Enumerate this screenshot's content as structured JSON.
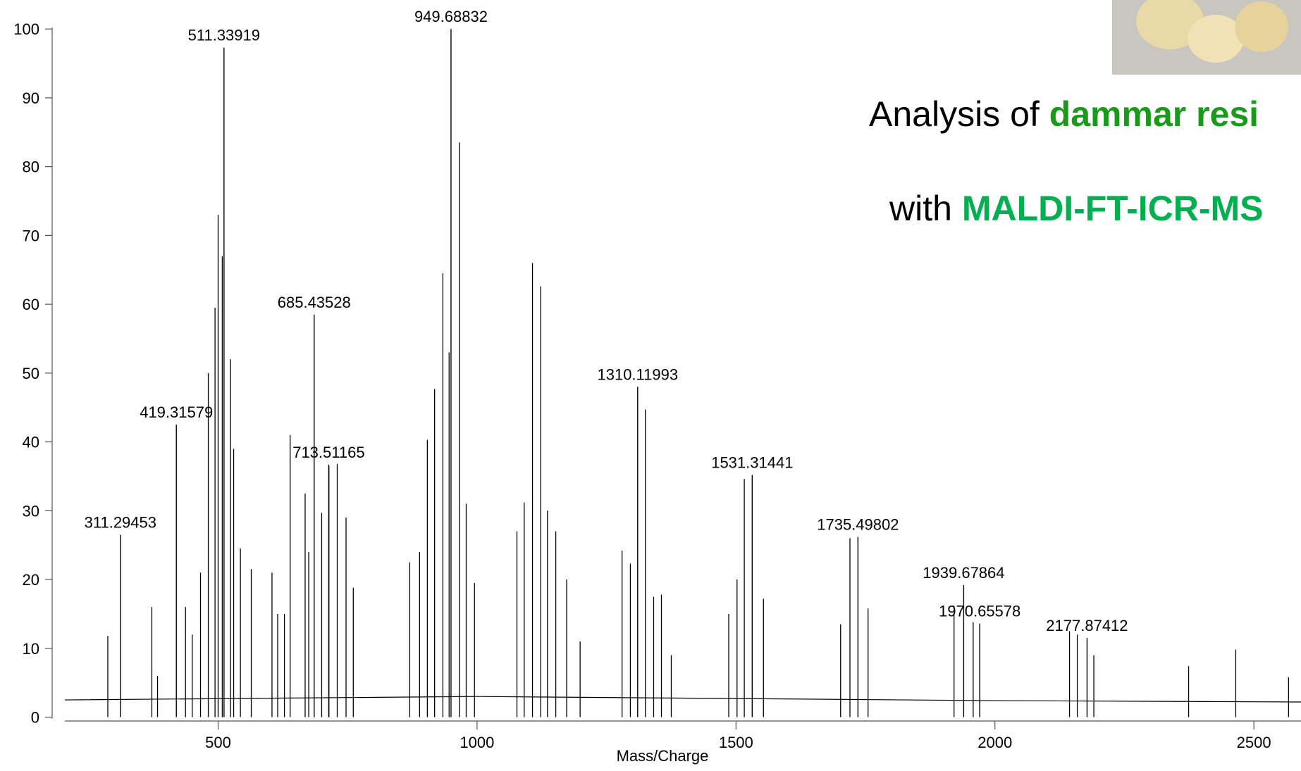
{
  "chart_data": {
    "type": "spectrum",
    "x_label": "Mass/Charge",
    "xlim": [
      204,
      2591
    ],
    "xticks": [
      500,
      1000,
      1500,
      2000,
      2500
    ],
    "ylim": [
      0,
      100
    ],
    "yticks": [
      0,
      10,
      20,
      30,
      40,
      50,
      60,
      70,
      80,
      90,
      100
    ],
    "color": "#000000",
    "x": [
      311.29453,
      419.31579,
      511.33919,
      685.43528,
      713.51165,
      949.68832,
      1310.11993,
      1531.31441,
      1735.49802,
      1939.67864,
      1970.65578,
      2177.87412
    ],
    "values": [
      26.5,
      42.5,
      97.3,
      58.5,
      36.7,
      100,
      48,
      35.2,
      26.2,
      19.2,
      13.6,
      11.5
    ],
    "unlabeled_peaks": {
      "x": [
        287,
        372,
        383,
        437,
        450,
        466,
        481,
        494,
        500,
        508,
        524,
        530,
        543,
        564,
        604,
        615,
        628,
        639,
        668,
        675,
        700,
        714,
        730,
        747,
        761,
        870,
        889,
        904,
        918,
        934,
        946,
        966,
        979,
        995,
        1077,
        1091,
        1107,
        1123,
        1136,
        1152,
        1173,
        1199,
        1280,
        1296,
        1325,
        1341,
        1356,
        1375,
        1486,
        1502,
        1516,
        1553,
        1702,
        1720,
        1755,
        1921,
        1958,
        2144,
        2159,
        2191,
        2374,
        2465,
        2567
      ],
      "values": [
        11.8,
        16,
        6,
        16,
        12,
        21,
        50,
        59.5,
        73,
        67,
        52,
        39,
        24.5,
        21.5,
        21,
        15,
        15,
        41,
        32.5,
        24,
        29.7,
        36.5,
        36.8,
        29,
        18.8,
        22.5,
        24,
        40.3,
        47.7,
        64.5,
        53,
        83.5,
        31,
        19.5,
        27,
        31.2,
        66,
        62.6,
        30,
        27,
        20,
        11,
        24.2,
        22.3,
        44.7,
        17.5,
        17.8,
        9,
        15,
        20,
        34.6,
        17.2,
        13.5,
        26,
        15.8,
        16.2,
        13.8,
        12.5,
        12,
        9,
        7.4,
        9.8,
        5.8
      ]
    },
    "baseline": {
      "x": [
        204,
        1000,
        1500,
        2000,
        2591
      ],
      "values": [
        2.5,
        3,
        2.7,
        2.4,
        2.2
      ]
    },
    "headline": [
      [
        {
          "text": "Analysis of ",
          "color": "#000000"
        },
        {
          "text": "dammar resi",
          "color": "#1a9a1a"
        }
      ],
      [
        {
          "text": "with ",
          "color": "#000000"
        },
        {
          "text": "MALDI-FT-ICR-MS",
          "color": "#00b050"
        }
      ]
    ]
  }
}
